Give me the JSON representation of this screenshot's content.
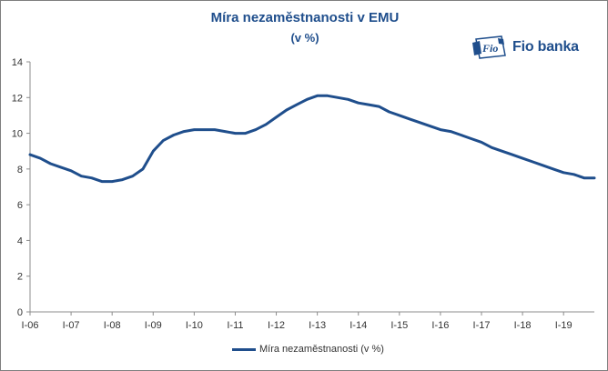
{
  "header": {
    "title": "Míra nezaměstnanosti v EMU",
    "subtitle": "(v %)"
  },
  "logo": {
    "mark_text": "Fio",
    "brand_text": "Fio banka",
    "color": "#1f4e8c"
  },
  "chart_data": {
    "type": "line",
    "title": "Míra nezaměstnanosti v EMU",
    "subtitle": "(v %)",
    "xlabel": "",
    "ylabel": "",
    "ylim": [
      0,
      14
    ],
    "yticks": [
      0,
      2,
      4,
      6,
      8,
      10,
      12,
      14
    ],
    "xticks": [
      "I-06",
      "I-07",
      "I-08",
      "I-09",
      "I-10",
      "I-11",
      "I-12",
      "I-13",
      "I-14",
      "I-15",
      "I-16",
      "I-17",
      "I-18",
      "I-19"
    ],
    "grid": false,
    "legend_position": "bottom",
    "series": [
      {
        "name": "Míra nezaměstnanosti (v %)",
        "color": "#1f4e8c",
        "x": [
          "2006-01",
          "2006-04",
          "2006-07",
          "2006-10",
          "2007-01",
          "2007-04",
          "2007-07",
          "2007-10",
          "2008-01",
          "2008-04",
          "2008-07",
          "2008-10",
          "2009-01",
          "2009-04",
          "2009-07",
          "2009-10",
          "2010-01",
          "2010-04",
          "2010-07",
          "2010-10",
          "2011-01",
          "2011-04",
          "2011-07",
          "2011-10",
          "2012-01",
          "2012-04",
          "2012-07",
          "2012-10",
          "2013-01",
          "2013-04",
          "2013-07",
          "2013-10",
          "2014-01",
          "2014-04",
          "2014-07",
          "2014-10",
          "2015-01",
          "2015-04",
          "2015-07",
          "2015-10",
          "2016-01",
          "2016-04",
          "2016-07",
          "2016-10",
          "2017-01",
          "2017-04",
          "2017-07",
          "2017-10",
          "2018-01",
          "2018-04",
          "2018-07",
          "2018-10",
          "2019-01",
          "2019-04",
          "2019-07",
          "2019-10"
        ],
        "values": [
          8.8,
          8.6,
          8.3,
          8.1,
          7.9,
          7.6,
          7.5,
          7.3,
          7.3,
          7.4,
          7.6,
          8.0,
          9.0,
          9.6,
          9.9,
          10.1,
          10.2,
          10.2,
          10.2,
          10.1,
          10.0,
          10.0,
          10.2,
          10.5,
          10.9,
          11.3,
          11.6,
          11.9,
          12.1,
          12.1,
          12.0,
          11.9,
          11.7,
          11.6,
          11.5,
          11.2,
          11.0,
          10.8,
          10.6,
          10.4,
          10.2,
          10.1,
          9.9,
          9.7,
          9.5,
          9.2,
          9.0,
          8.8,
          8.6,
          8.4,
          8.2,
          8.0,
          7.8,
          7.7,
          7.5,
          7.5
        ]
      }
    ]
  }
}
